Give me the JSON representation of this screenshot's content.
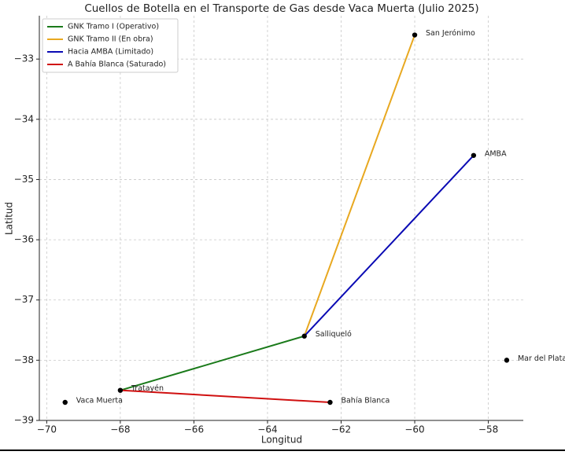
{
  "chart_data": {
    "type": "line",
    "title": "Cuellos de Botella en el Transporte de Gas desde Vaca Muerta (Julio 2025)",
    "x_label": "Longitud",
    "y_label": "Latitud",
    "xlim": [
      -70.2,
      -57.05
    ],
    "ylim": [
      -39,
      -32.28
    ],
    "xticks": [
      {
        "value": -70,
        "label": "−70"
      },
      {
        "value": -68,
        "label": "−68"
      },
      {
        "value": -66,
        "label": "−66"
      },
      {
        "value": -64,
        "label": "−64"
      },
      {
        "value": -62,
        "label": "−62"
      },
      {
        "value": -60,
        "label": "−60"
      },
      {
        "value": -58,
        "label": "−58"
      }
    ],
    "yticks": [
      {
        "value": -39,
        "label": "−39"
      },
      {
        "value": -38,
        "label": "−38"
      },
      {
        "value": -37,
        "label": "−37"
      },
      {
        "value": -36,
        "label": "−36"
      },
      {
        "value": -35,
        "label": "−35"
      },
      {
        "value": -34,
        "label": "−34"
      },
      {
        "value": -33,
        "label": "−33"
      }
    ],
    "grid": true,
    "legend": "upper left",
    "series": [
      {
        "name": "GNK Tramo I (Operativo)",
        "color": "#1a7a1a",
        "x": [
          -68,
          -63
        ],
        "values": [
          -38.5,
          -37.6
        ]
      },
      {
        "name": "GNK Tramo II (En obra)",
        "color": "#e8a820",
        "x": [
          -63,
          -60
        ],
        "values": [
          -37.6,
          -32.6
        ]
      },
      {
        "name": "Hacia AMBA (Limitado)",
        "color": "#0a0ab4",
        "x": [
          -63,
          -58.4
        ],
        "values": [
          -37.6,
          -34.6
        ]
      },
      {
        "name": "A Bahía Blanca (Saturado)",
        "color": "#d01010",
        "x": [
          -68,
          -62.3
        ],
        "values": [
          -38.5,
          -38.7
        ]
      }
    ],
    "points": {
      "color": "#000000",
      "labels": [
        "Vaca Muerta",
        "Tratayén",
        "Salliqueló",
        "San Jerónimo",
        "AMBA",
        "Bahía Blanca",
        "Mar del Plata"
      ],
      "x": [
        -69.5,
        -68,
        -63,
        -60,
        -58.4,
        -62.3,
        -57.5
      ],
      "values": [
        -38.7,
        -38.5,
        -37.6,
        -32.6,
        -34.6,
        -38.7,
        -38.0
      ]
    }
  }
}
